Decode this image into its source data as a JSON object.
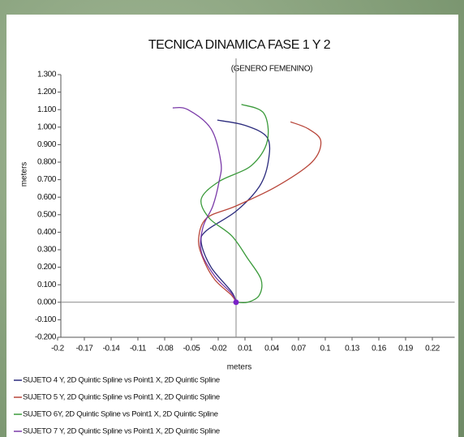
{
  "chart_data": {
    "type": "line",
    "title": "TECNICA DINAMICA FASE 1 Y 2",
    "subtitle": "(GENERO FEMENINO)",
    "xlabel": "meters",
    "ylabel": "meters",
    "xlim": [
      -0.2,
      0.245
    ],
    "ylim": [
      -0.2,
      1.3
    ],
    "xticks": [
      -0.2,
      -0.17,
      -0.14,
      -0.11,
      -0.08,
      -0.05,
      -0.02,
      0.01,
      0.04,
      0.07,
      0.1,
      0.13,
      0.16,
      0.19,
      0.22
    ],
    "yticks": [
      {
        "value": -0.2,
        "label": "-0.200"
      },
      {
        "value": -0.1,
        "label": "-0.100"
      },
      {
        "value": 0,
        "label": "0.000"
      },
      {
        "value": 0.1,
        "label": "0.100"
      },
      {
        "value": 0.2,
        "label": "0.200"
      },
      {
        "value": 0.3,
        "label": "0.300"
      },
      {
        "value": 0.4,
        "label": "0.400"
      },
      {
        "value": 0.5,
        "label": "0.500"
      },
      {
        "value": 0.6,
        "label": "0.600"
      },
      {
        "value": 0.7,
        "label": "0.700"
      },
      {
        "value": 0.8,
        "label": "0.800"
      },
      {
        "value": 0.9,
        "label": "0.900"
      },
      {
        "value": 1.0,
        "label": "1.000"
      },
      {
        "value": 1.1,
        "label": "1.100"
      },
      {
        "value": 1.2,
        "label": "1.200"
      },
      {
        "value": 1.3,
        "label": "1.300"
      }
    ],
    "series": [
      {
        "name": "SUJETO 4  Y, 2D Quintic Spline vs Point1 X, 2D Quintic Spline",
        "color": "#2b2b7d",
        "x": [
          -0.021,
          0.01,
          0.035,
          0.036,
          0.026,
          0.0,
          -0.033,
          -0.039,
          -0.028,
          -0.005,
          0.0
        ],
        "values": [
          1.04,
          1.01,
          0.94,
          0.8,
          0.66,
          0.52,
          0.41,
          0.34,
          0.2,
          0.06,
          0.0
        ]
      },
      {
        "name": "SUJETO 5 Y, 2D Quintic Spline vs Point1 X, 2D Quintic Spline",
        "color": "#b8463a",
        "x": [
          0.061,
          0.081,
          0.095,
          0.085,
          0.045,
          0.0,
          -0.033,
          -0.042,
          -0.037,
          -0.024,
          -0.005,
          0.0
        ],
        "values": [
          1.03,
          0.99,
          0.92,
          0.8,
          0.66,
          0.55,
          0.48,
          0.36,
          0.25,
          0.13,
          0.04,
          0.0
        ]
      },
      {
        "name": "SUJETO 6Y, 2D Quintic Spline vs Point1 X, 2D Quintic Spline",
        "color": "#3a9a3a",
        "x": [
          0.006,
          0.031,
          0.035,
          0.017,
          -0.019,
          -0.039,
          -0.03,
          -0.005,
          0.013,
          0.028,
          0.026,
          0.013,
          0.0
        ],
        "values": [
          1.13,
          1.08,
          0.92,
          0.78,
          0.69,
          0.59,
          0.48,
          0.38,
          0.25,
          0.13,
          0.04,
          0.0,
          0.0
        ]
      },
      {
        "name": "SUJETO 7 Y, 2D Quintic Spline vs Point1 X, 2D Quintic Spline",
        "color": "#7a3aa8",
        "x": [
          -0.071,
          -0.054,
          -0.028,
          -0.017,
          -0.019,
          -0.026,
          -0.037,
          -0.039,
          -0.024,
          -0.005,
          0.0
        ],
        "values": [
          1.11,
          1.1,
          0.99,
          0.8,
          0.69,
          0.55,
          0.43,
          0.29,
          0.15,
          0.05,
          0.0
        ]
      }
    ]
  }
}
